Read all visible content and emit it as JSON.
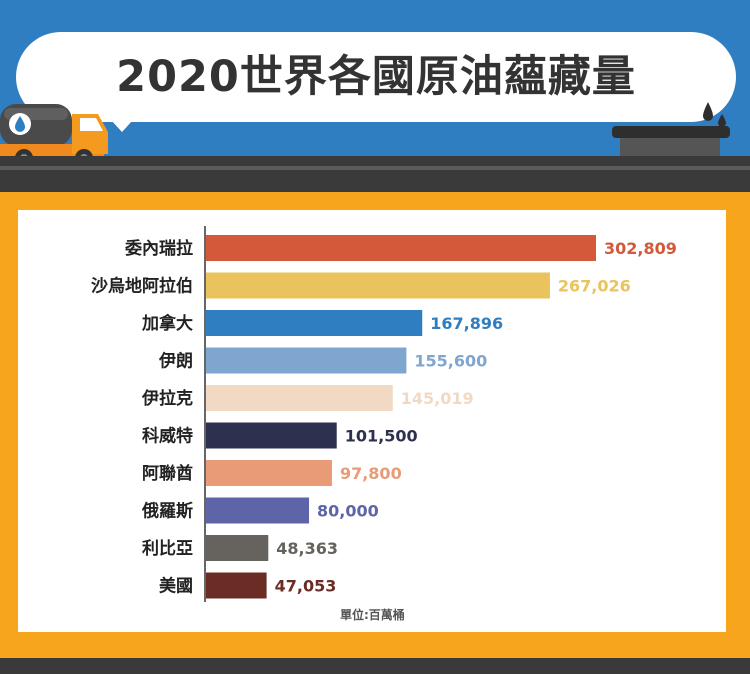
{
  "title": "2020世界各國原油蘊藏量",
  "unit_note": "單位:百萬桶",
  "chart_data": {
    "type": "bar",
    "orientation": "horizontal",
    "title": "2020世界各國原油蘊藏量",
    "unit": "單位:百萬桶",
    "categories": [
      "委內瑞拉",
      "沙烏地阿拉伯",
      "加拿大",
      "伊朗",
      "伊拉克",
      "科威特",
      "阿聯酋",
      "俄羅斯",
      "利比亞",
      "美國"
    ],
    "values": [
      302809,
      267026,
      167896,
      155600,
      145019,
      101500,
      97800,
      80000,
      48363,
      47053
    ],
    "value_labels": [
      "302,809",
      "267,026",
      "167,896",
      "155,600",
      "145,019",
      "101,500",
      "97,800",
      "80,000",
      "48,363",
      "47,053"
    ],
    "colors": [
      "#d3593a",
      "#ebc35c",
      "#2f7ec1",
      "#7fa6cf",
      "#f1d9c4",
      "#2d3150",
      "#e99b77",
      "#5e64a8",
      "#66625d",
      "#6a2c25"
    ],
    "xlim": [
      0,
      302809
    ],
    "grid": false,
    "legend": "none"
  }
}
